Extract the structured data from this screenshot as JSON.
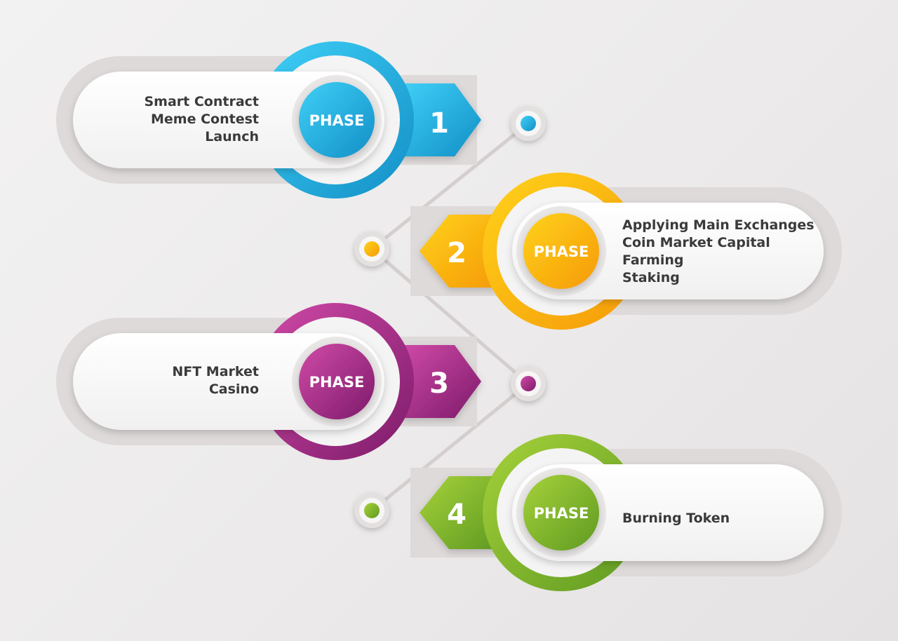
{
  "colors": {
    "blue": "#1f9fd6",
    "orange": "#f9ad0b",
    "purple": "#9b2a86",
    "green": "#7fb12a",
    "connector": "#d4cece"
  },
  "phases": [
    {
      "label": "PHASE",
      "number": "1",
      "items": [
        "Smart Contract",
        "Meme Contest",
        "Launch"
      ]
    },
    {
      "label": "PHASE",
      "number": "2",
      "items": [
        "Applying Main Exchanges",
        "Coin Market Capital",
        "Farming",
        "Staking"
      ]
    },
    {
      "label": "PHASE",
      "number": "3",
      "items": [
        "NFT Market",
        "Casino"
      ]
    },
    {
      "label": "PHASE",
      "number": "4",
      "items": [
        "Burning Token"
      ]
    }
  ]
}
